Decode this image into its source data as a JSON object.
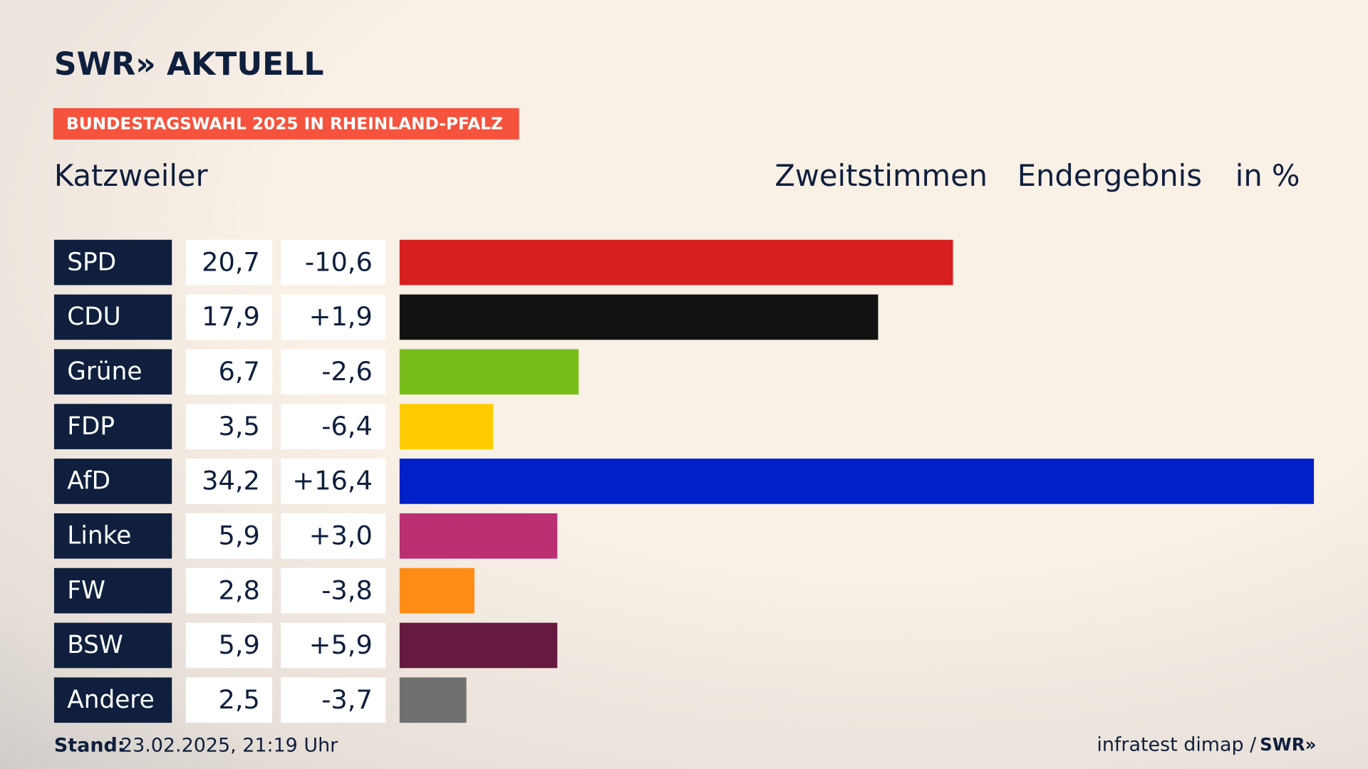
{
  "header": {
    "brand": "SWR» AKTUELL",
    "tag": "BUNDESTAGSWAHL 2025 IN RHEINLAND-PFALZ"
  },
  "chart_data": {
    "type": "bar",
    "orientation": "horizontal",
    "title": "Katzweiler",
    "column_headers": [
      "Zweitstimmen",
      "Endergebnis",
      "in %"
    ],
    "categories": [
      "SPD",
      "CDU",
      "Grüne",
      "FDP",
      "AfD",
      "Linke",
      "FW",
      "BSW",
      "Andere"
    ],
    "values": [
      20.7,
      17.9,
      6.7,
      3.5,
      34.2,
      5.9,
      2.8,
      5.9,
      2.5
    ],
    "value_labels": [
      "20,7",
      "17,9",
      "6,7",
      "3,5",
      "34,2",
      "5,9",
      "2,8",
      "5,9",
      "2,5"
    ],
    "changes": [
      -10.6,
      1.9,
      -2.6,
      -6.4,
      16.4,
      3.0,
      -3.8,
      5.9,
      -3.7
    ],
    "change_labels": [
      "-10,6",
      "+1,9",
      "-2,6",
      "-6,4",
      "+16,4",
      "+3,0",
      "-3,8",
      "+5,9",
      "-3,7"
    ],
    "colors": [
      "#d81f1f",
      "#121212",
      "#78be1a",
      "#ffcc00",
      "#0021c8",
      "#bb2f73",
      "#ff8c14",
      "#671a40",
      "#707070"
    ],
    "xlim": [
      0,
      34.2
    ]
  },
  "footer": {
    "stand_label": "Stand:",
    "stand_value": "23.02.2025, 21:19 Uhr",
    "source": "infratest dimap /",
    "source_brand": "SWR»"
  }
}
